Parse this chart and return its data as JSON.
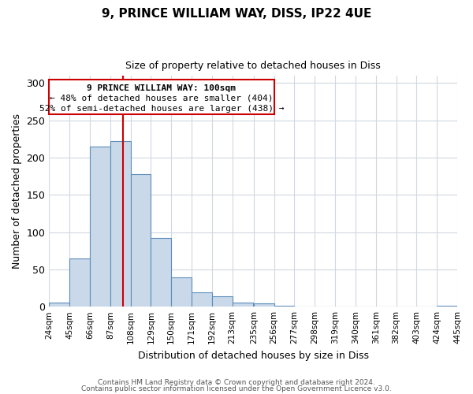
{
  "title1": "9, PRINCE WILLIAM WAY, DISS, IP22 4UE",
  "title2": "Size of property relative to detached houses in Diss",
  "xlabel": "Distribution of detached houses by size in Diss",
  "ylabel": "Number of detached properties",
  "bin_edges": [
    24,
    45,
    66,
    87,
    108,
    129,
    150,
    171,
    192,
    213,
    235,
    256,
    277,
    298,
    319,
    340,
    361,
    382,
    403,
    424,
    445
  ],
  "bar_heights": [
    5,
    65,
    215,
    222,
    178,
    92,
    39,
    19,
    14,
    6,
    4,
    1,
    0,
    0,
    0,
    0,
    0,
    0,
    0,
    1
  ],
  "bar_color": "#c9d9ea",
  "bar_edge_color": "#5b8db8",
  "vline_x": 100,
  "vline_color": "#cc0000",
  "ylim": [
    0,
    310
  ],
  "yticks": [
    0,
    50,
    100,
    150,
    200,
    250,
    300
  ],
  "annotation_line1": "9 PRINCE WILLIAM WAY: 100sqm",
  "annotation_line2": "← 48% of detached houses are smaller (404)",
  "annotation_line3": "52% of semi-detached houses are larger (438) →",
  "footer1": "Contains HM Land Registry data © Crown copyright and database right 2024.",
  "footer2": "Contains public sector information licensed under the Open Government Licence v3.0.",
  "tick_labels": [
    "24sqm",
    "45sqm",
    "66sqm",
    "87sqm",
    "108sqm",
    "129sqm",
    "150sqm",
    "171sqm",
    "192sqm",
    "213sqm",
    "235sqm",
    "256sqm",
    "277sqm",
    "298sqm",
    "319sqm",
    "340sqm",
    "361sqm",
    "382sqm",
    "403sqm",
    "424sqm",
    "445sqm"
  ],
  "grid_color": "#d0d8e0",
  "background_color": "#ffffff"
}
